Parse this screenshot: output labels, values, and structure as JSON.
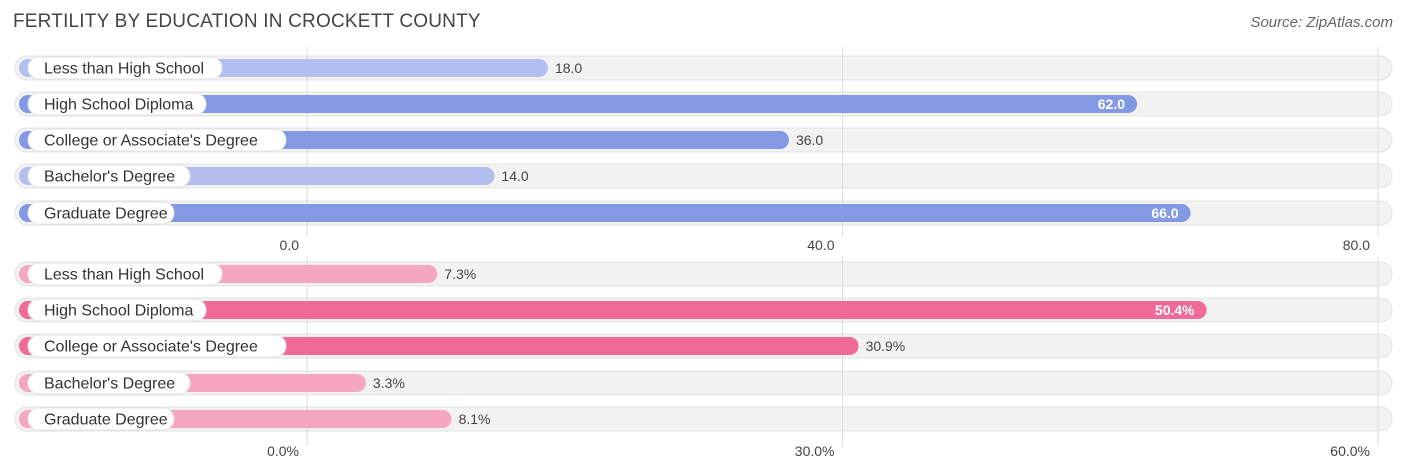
{
  "header": {
    "title": "FERTILITY BY EDUCATION IN CROCKETT COUNTY",
    "source": "Source: ZipAtlas.com"
  },
  "chart_data": [
    {
      "type": "bar",
      "orientation": "horizontal",
      "categories": [
        "Less than High School",
        "High School Diploma",
        "College or Associate's Degree",
        "Bachelor's Degree",
        "Graduate Degree"
      ],
      "values": [
        18.0,
        62.0,
        36.0,
        14.0,
        66.0
      ],
      "value_labels": [
        "18.0",
        "62.0",
        "36.0",
        "14.0",
        "66.0"
      ],
      "xlim": [
        0,
        80
      ],
      "ticks": [
        0,
        40,
        80
      ],
      "tick_labels": [
        "0.0",
        "40.0",
        "80.0"
      ],
      "colors": {
        "strong": "#8399e3",
        "light": "#b3c0ef"
      }
    },
    {
      "type": "bar",
      "orientation": "horizontal",
      "categories": [
        "Less than High School",
        "High School Diploma",
        "College or Associate's Degree",
        "Bachelor's Degree",
        "Graduate Degree"
      ],
      "values": [
        7.3,
        50.4,
        30.9,
        3.3,
        8.1
      ],
      "value_labels": [
        "7.3%",
        "50.4%",
        "30.9%",
        "3.3%",
        "8.1%"
      ],
      "xlim": [
        0,
        60
      ],
      "ticks": [
        0,
        30,
        60
      ],
      "tick_labels": [
        "0.0%",
        "30.0%",
        "60.0%"
      ],
      "colors": {
        "strong": "#ef6a97",
        "light": "#f5a7c2"
      }
    }
  ]
}
